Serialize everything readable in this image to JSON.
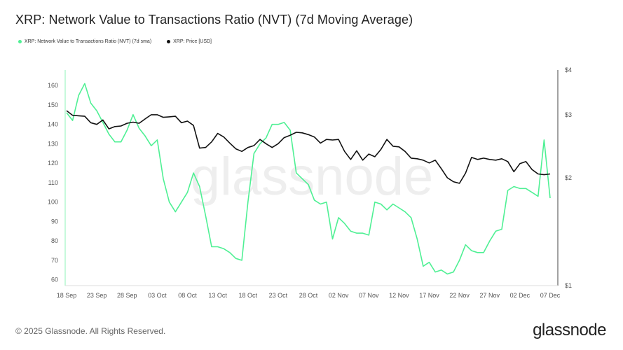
{
  "title": "XRP: Network Value to Transactions Ratio (NVT) (7d Moving Average)",
  "legend": [
    {
      "label": "XRP: Network Value to Transactions Ratio (NVT) (7d sma)",
      "color": "#4ff094"
    },
    {
      "label": "XRP: Price [USD]",
      "color": "#111111"
    }
  ],
  "footer": {
    "copyright": "© 2025 Glassnode. All Rights Reserved.",
    "brand": "glassnode",
    "watermark": "glassnode"
  },
  "chart_data": {
    "type": "line",
    "x_ticks": [
      "18 Sep",
      "23 Sep",
      "28 Sep",
      "03 Oct",
      "08 Oct",
      "13 Oct",
      "18 Oct",
      "23 Oct",
      "28 Oct",
      "02 Nov",
      "07 Nov",
      "12 Nov",
      "17 Nov",
      "22 Nov",
      "27 Nov",
      "02 Dec",
      "07 Dec"
    ],
    "left_axis": {
      "ticks": [
        "60",
        "70",
        "80",
        "90",
        "100",
        "110",
        "120",
        "130",
        "140",
        "150",
        "160"
      ],
      "range": [
        57,
        168
      ]
    },
    "right_axis": {
      "ticks": [
        "$1",
        "$2",
        "$3",
        "$4"
      ],
      "scale": "log",
      "range": [
        1,
        4
      ]
    },
    "series": [
      {
        "name": "XRP: Network Value to Transactions Ratio (NVT) (7d sma)",
        "axis": "left",
        "color": "#4ff094",
        "values": [
          146,
          142,
          155,
          161,
          151,
          147,
          141,
          135,
          131,
          131,
          137,
          145,
          138,
          134,
          129,
          132,
          112,
          100,
          95,
          100,
          105,
          115,
          108,
          93,
          77,
          77,
          76,
          74,
          71,
          70,
          100,
          125,
          130,
          133,
          140,
          140,
          141,
          137,
          115,
          112,
          109,
          101,
          99,
          100,
          81,
          92,
          89,
          85,
          84,
          84,
          83,
          100,
          99,
          96,
          99,
          97,
          95,
          92,
          81,
          67,
          69,
          64,
          65,
          63,
          64,
          70,
          78,
          75,
          74,
          74,
          80,
          85,
          86,
          106,
          108,
          107,
          107,
          105,
          103,
          132,
          102
        ]
      },
      {
        "name": "XRP: Price [USD]",
        "axis": "right",
        "color": "#111111",
        "values": [
          3.08,
          2.99,
          2.98,
          2.97,
          2.85,
          2.82,
          2.9,
          2.74,
          2.78,
          2.79,
          2.84,
          2.86,
          2.84,
          2.92,
          3.0,
          3.0,
          2.95,
          2.96,
          2.97,
          2.85,
          2.88,
          2.8,
          2.42,
          2.43,
          2.52,
          2.66,
          2.6,
          2.5,
          2.41,
          2.37,
          2.43,
          2.46,
          2.56,
          2.49,
          2.43,
          2.49,
          2.59,
          2.63,
          2.68,
          2.67,
          2.64,
          2.6,
          2.5,
          2.56,
          2.55,
          2.56,
          2.37,
          2.25,
          2.38,
          2.24,
          2.33,
          2.29,
          2.4,
          2.56,
          2.45,
          2.44,
          2.37,
          2.27,
          2.26,
          2.24,
          2.2,
          2.24,
          2.12,
          2.0,
          1.95,
          1.93,
          2.06,
          2.28,
          2.25,
          2.27,
          2.25,
          2.24,
          2.26,
          2.22,
          2.08,
          2.19,
          2.22,
          2.11,
          2.05,
          2.04,
          2.05
        ]
      }
    ],
    "grid": false,
    "legend_position": "top-left"
  }
}
